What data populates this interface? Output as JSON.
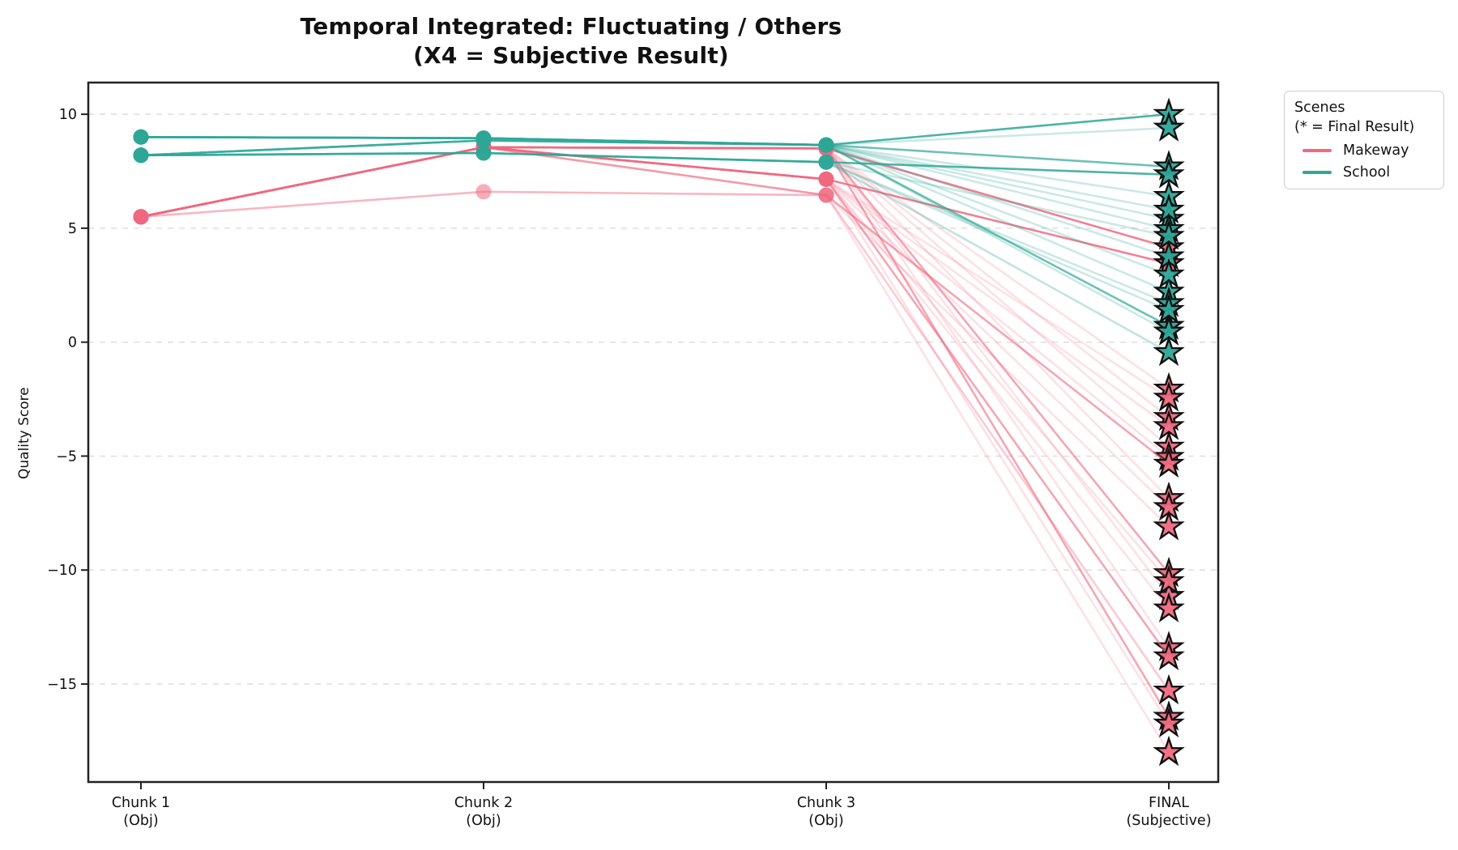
{
  "chart_data": {
    "type": "line",
    "title": "Temporal Integrated: Fluctuating / Others",
    "subtitle": "(X4 = Subjective Result)",
    "ylabel": "Quality Score",
    "grid": "horizontal-dashed",
    "yticks": [
      10,
      5,
      0,
      -5,
      -10,
      -15
    ],
    "ytick_labels": [
      "10",
      "5",
      "0",
      "−5",
      "−10",
      "−15"
    ],
    "ylim": [
      -19.3,
      11.39
    ],
    "categories": [
      [
        "Chunk 1",
        "(Obj)"
      ],
      [
        "Chunk 2",
        "(Obj)"
      ],
      [
        "Chunk 3",
        "(Obj)"
      ],
      [
        "FINAL",
        "(Subjective)"
      ]
    ],
    "legend": {
      "title": "Scenes",
      "subtitle": "(* = Final Result)",
      "position": "outside-right",
      "items": [
        {
          "label": "Makeway",
          "color": "#F06980"
        },
        {
          "label": "School",
          "color": "#2DA796"
        }
      ]
    },
    "colors": {
      "Makeway": "#F06980",
      "School": "#2DA796",
      "marker_edge": "#111111",
      "gridline": "#dcdcdc",
      "spine": "#222222"
    },
    "series": [
      {
        "scene": "Makeway",
        "alpha": 0.85,
        "values": [
          5.5,
          8.55,
          8.5,
          4.15
        ]
      },
      {
        "scene": "Makeway",
        "alpha": 0.2,
        "values": [
          5.5,
          8.55,
          8.5,
          -2.05
        ]
      },
      {
        "scene": "Makeway",
        "alpha": 0.2,
        "values": [
          5.5,
          8.55,
          8.5,
          -3.3
        ]
      },
      {
        "scene": "Makeway",
        "alpha": 0.2,
        "values": [
          5.5,
          8.55,
          8.5,
          -4.6
        ]
      },
      {
        "scene": "Makeway",
        "alpha": 0.2,
        "values": [
          5.5,
          8.55,
          8.5,
          -6.85
        ]
      },
      {
        "scene": "Makeway",
        "alpha": 0.6,
        "values": [
          5.5,
          8.55,
          8.5,
          -10.15
        ]
      },
      {
        "scene": "Makeway",
        "alpha": 0.2,
        "values": [
          5.5,
          8.55,
          8.5,
          -11.15
        ]
      },
      {
        "scene": "Makeway",
        "alpha": 0.2,
        "values": [
          5.5,
          8.55,
          8.5,
          -13.4
        ]
      },
      {
        "scene": "Makeway",
        "alpha": 0.6,
        "values": [
          5.5,
          8.55,
          8.5,
          -16.45
        ]
      },
      {
        "scene": "Makeway",
        "alpha": 0.85,
        "values": [
          5.5,
          8.55,
          7.15,
          3.45
        ]
      },
      {
        "scene": "Makeway",
        "alpha": 0.2,
        "values": [
          5.5,
          8.55,
          7.15,
          -2.45
        ]
      },
      {
        "scene": "Makeway",
        "alpha": 0.2,
        "values": [
          5.5,
          8.55,
          7.15,
          -3.7
        ]
      },
      {
        "scene": "Makeway",
        "alpha": 0.2,
        "values": [
          5.5,
          8.55,
          7.15,
          -5.05
        ]
      },
      {
        "scene": "Makeway",
        "alpha": 0.2,
        "values": [
          5.5,
          8.55,
          7.15,
          -7.25
        ]
      },
      {
        "scene": "Makeway",
        "alpha": 0.2,
        "values": [
          5.5,
          8.55,
          7.15,
          -10.5
        ]
      },
      {
        "scene": "Makeway",
        "alpha": 0.2,
        "values": [
          5.5,
          8.55,
          7.15,
          -11.7
        ]
      },
      {
        "scene": "Makeway",
        "alpha": 0.6,
        "values": [
          5.5,
          8.55,
          7.15,
          -13.8
        ]
      },
      {
        "scene": "Makeway",
        "alpha": 0.2,
        "values": [
          5.5,
          8.55,
          7.15,
          -16.75
        ]
      },
      {
        "scene": "Makeway",
        "alpha": 0.6,
        "values": [
          5.5,
          8.55,
          6.45,
          -5.35
        ]
      },
      {
        "scene": "Makeway",
        "alpha": 0.2,
        "values": [
          5.5,
          8.55,
          6.45,
          -8.1
        ]
      },
      {
        "scene": "Makeway",
        "alpha": 0.35,
        "values": [
          5.5,
          6.6,
          6.45,
          -15.3
        ]
      },
      {
        "scene": "Makeway",
        "alpha": 0.2,
        "values": [
          5.5,
          6.6,
          6.45,
          -18.0
        ]
      },
      {
        "scene": "School",
        "alpha": 0.85,
        "values": [
          9.0,
          8.95,
          8.65,
          10.0
        ]
      },
      {
        "scene": "School",
        "alpha": 0.7,
        "values": [
          9.0,
          8.95,
          8.65,
          7.7
        ]
      },
      {
        "scene": "School",
        "alpha": 0.25,
        "values": [
          9.0,
          8.95,
          8.65,
          6.4
        ]
      },
      {
        "scene": "School",
        "alpha": 0.25,
        "values": [
          9.0,
          8.95,
          8.65,
          5.4
        ]
      },
      {
        "scene": "School",
        "alpha": 0.25,
        "values": [
          9.0,
          8.95,
          8.65,
          3.75
        ]
      },
      {
        "scene": "School",
        "alpha": 0.25,
        "values": [
          9.0,
          8.95,
          8.65,
          2.2
        ]
      },
      {
        "scene": "School",
        "alpha": 0.25,
        "values": [
          8.2,
          8.85,
          8.65,
          9.4
        ]
      },
      {
        "scene": "School",
        "alpha": 0.25,
        "values": [
          8.2,
          8.85,
          8.65,
          5.8
        ]
      },
      {
        "scene": "School",
        "alpha": 0.25,
        "values": [
          8.2,
          8.85,
          8.65,
          4.95
        ]
      },
      {
        "scene": "School",
        "alpha": 0.25,
        "values": [
          8.2,
          8.85,
          8.65,
          2.95
        ]
      },
      {
        "scene": "School",
        "alpha": 0.7,
        "values": [
          8.2,
          8.85,
          8.65,
          0.7
        ]
      },
      {
        "scene": "School",
        "alpha": 0.25,
        "values": [
          8.2,
          8.85,
          8.65,
          0.45
        ]
      },
      {
        "scene": "School",
        "alpha": 0.85,
        "values": [
          8.2,
          8.3,
          7.9,
          7.35
        ]
      },
      {
        "scene": "School",
        "alpha": 0.25,
        "values": [
          8.2,
          8.3,
          7.9,
          4.65
        ]
      },
      {
        "scene": "School",
        "alpha": 0.25,
        "values": [
          8.2,
          8.3,
          7.9,
          1.7
        ]
      },
      {
        "scene": "School",
        "alpha": 0.25,
        "values": [
          8.2,
          8.3,
          7.9,
          1.4
        ]
      },
      {
        "scene": "School",
        "alpha": 0.3,
        "values": [
          8.2,
          8.3,
          7.9,
          -0.45
        ]
      }
    ]
  }
}
